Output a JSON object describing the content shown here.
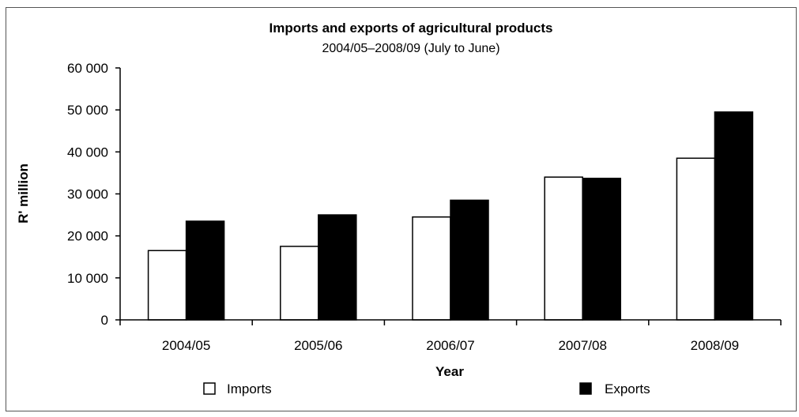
{
  "chart_data": {
    "type": "bar",
    "title": "Imports and exports of agricultural products",
    "subtitle": "2004/05–2008/09 (July to June)",
    "xlabel": "Year",
    "ylabel": "R' million",
    "categories": [
      "2004/05",
      "2005/06",
      "2006/07",
      "2007/08",
      "2008/09"
    ],
    "ylim": [
      0,
      60000
    ],
    "yticks": [
      0,
      10000,
      20000,
      30000,
      40000,
      50000,
      60000
    ],
    "ytick_labels": [
      "0",
      "10 000",
      "20 000",
      "30 000",
      "40 000",
      "50 000",
      "60 000"
    ],
    "series": [
      {
        "name": "Imports",
        "values": [
          16500,
          17500,
          24500,
          34000,
          38500
        ],
        "color": "#ffffff"
      },
      {
        "name": "Exports",
        "values": [
          23500,
          25000,
          28500,
          33700,
          49500
        ],
        "color": "#000000"
      }
    ],
    "grid": false,
    "legend_position": "bottom"
  }
}
